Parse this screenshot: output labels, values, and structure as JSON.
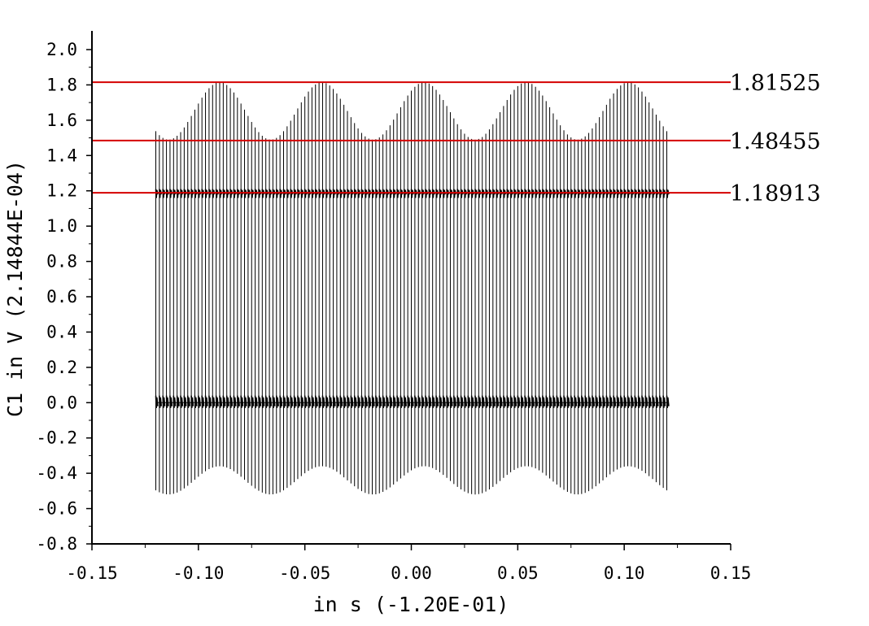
{
  "chart_data": {
    "type": "line",
    "xlabel": "in s (-1.20E-01)",
    "ylabel": "C1 in V (2.14844E-04)",
    "xlim": [
      -0.15,
      0.15
    ],
    "ylim": [
      -0.8,
      2.0
    ],
    "x_ticks": [
      "-0.15",
      "-0.10",
      "-0.05",
      "0.00",
      "0.05",
      "0.10",
      "0.15"
    ],
    "y_ticks": [
      "2.0",
      "1.8",
      "1.6",
      "1.4",
      "1.2",
      "1.0",
      "0.8",
      "0.6",
      "0.4",
      "0.2",
      "0.0",
      "-0.2",
      "-0.4",
      "-0.6",
      "-0.8"
    ],
    "grid": false,
    "reference_lines": [
      {
        "y": 1.81525,
        "label": "1.81525",
        "color": "#d40000"
      },
      {
        "y": 1.48455,
        "label": "1.48455",
        "color": "#d40000"
      },
      {
        "y": 1.18913,
        "label": "1.18913",
        "color": "#d40000"
      }
    ],
    "signal": {
      "color": "#000000",
      "x_start": -0.12,
      "x_end": 0.12,
      "pulse_count": 145,
      "envelope_period": 0.048,
      "high_level": 1.19,
      "low_level": 0.0,
      "peak_max": 1.815,
      "peak_min": 1.49,
      "trough_min": -0.52,
      "trough_max": -0.36
    }
  }
}
